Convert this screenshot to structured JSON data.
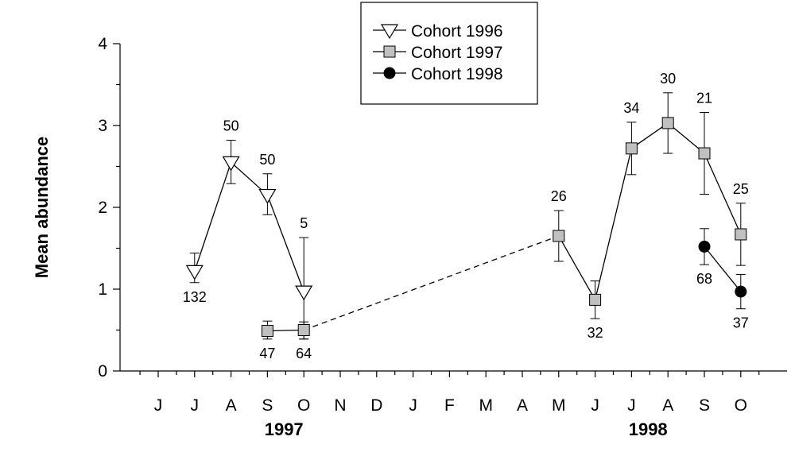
{
  "chart_data": {
    "type": "line",
    "title": "",
    "ylabel": "Mean abundance",
    "ylim": [
      0,
      4
    ],
    "yticks": [
      "0",
      "1",
      "2",
      "3",
      "4"
    ],
    "x_categories": [
      "J",
      "J",
      "A",
      "S",
      "O",
      "N",
      "D",
      "J",
      "F",
      "M",
      "A",
      "M",
      "J",
      "J",
      "A",
      "S",
      "O"
    ],
    "year_labels": [
      {
        "label": "1997",
        "center_index": 4
      },
      {
        "label": "1998",
        "center_index": 14
      }
    ],
    "legend": {
      "position": "top-center",
      "entries": [
        {
          "name": "Cohort 1996",
          "marker": "triangle-down-open"
        },
        {
          "name": "Cohort 1997",
          "marker": "square-gray"
        },
        {
          "name": "Cohort 1998",
          "marker": "circle-black"
        }
      ]
    },
    "series": [
      {
        "name": "Cohort 1996",
        "marker": "triangle-down-open",
        "points": [
          {
            "x": 1,
            "y": 1.22,
            "err_lo": 0.14,
            "err_hi": 0.22,
            "label": "132",
            "label_pos": "below"
          },
          {
            "x": 2,
            "y": 2.55,
            "err_lo": 0.26,
            "err_hi": 0.27,
            "label": "50",
            "label_pos": "above"
          },
          {
            "x": 3,
            "y": 2.15,
            "err_lo": 0.24,
            "err_hi": 0.26,
            "label": "50",
            "label_pos": "above"
          },
          {
            "x": 4,
            "y": 0.97,
            "err_lo": 0.58,
            "err_hi": 0.66,
            "label": "5",
            "label_pos": "above"
          }
        ]
      },
      {
        "name": "Cohort 1997",
        "marker": "square-gray",
        "points": [
          {
            "x": 3,
            "y": 0.49,
            "err_lo": 0.1,
            "err_hi": 0.12,
            "label": "47",
            "label_pos": "below"
          },
          {
            "x": 4,
            "y": 0.5,
            "err_lo": 0.11,
            "err_hi": 0.1,
            "label": "64",
            "label_pos": "below"
          },
          {
            "x": 11,
            "y": 1.65,
            "err_lo": 0.31,
            "err_hi": 0.31,
            "label": "26",
            "label_pos": "above"
          },
          {
            "x": 12,
            "y": 0.87,
            "err_lo": 0.23,
            "err_hi": 0.23,
            "label": "32",
            "label_pos": "below"
          },
          {
            "x": 13,
            "y": 2.72,
            "err_lo": 0.32,
            "err_hi": 0.32,
            "label": "34",
            "label_pos": "above"
          },
          {
            "x": 14,
            "y": 3.03,
            "err_lo": 0.37,
            "err_hi": 0.37,
            "label": "30",
            "label_pos": "above"
          },
          {
            "x": 15,
            "y": 2.66,
            "err_lo": 0.5,
            "err_hi": 0.5,
            "label": "21",
            "label_pos": "above"
          },
          {
            "x": 16,
            "y": 1.67,
            "err_lo": 0.38,
            "err_hi": 0.38,
            "label": "25",
            "label_pos": "above"
          }
        ],
        "dashed_segments": [
          [
            4,
            11
          ]
        ]
      },
      {
        "name": "Cohort 1998",
        "marker": "circle-black",
        "points": [
          {
            "x": 15,
            "y": 1.52,
            "err_lo": 0.22,
            "err_hi": 0.22,
            "label": "68",
            "label_pos": "below"
          },
          {
            "x": 16,
            "y": 0.97,
            "err_lo": 0.21,
            "err_hi": 0.21,
            "label": "37",
            "label_pos": "below"
          }
        ]
      }
    ]
  }
}
